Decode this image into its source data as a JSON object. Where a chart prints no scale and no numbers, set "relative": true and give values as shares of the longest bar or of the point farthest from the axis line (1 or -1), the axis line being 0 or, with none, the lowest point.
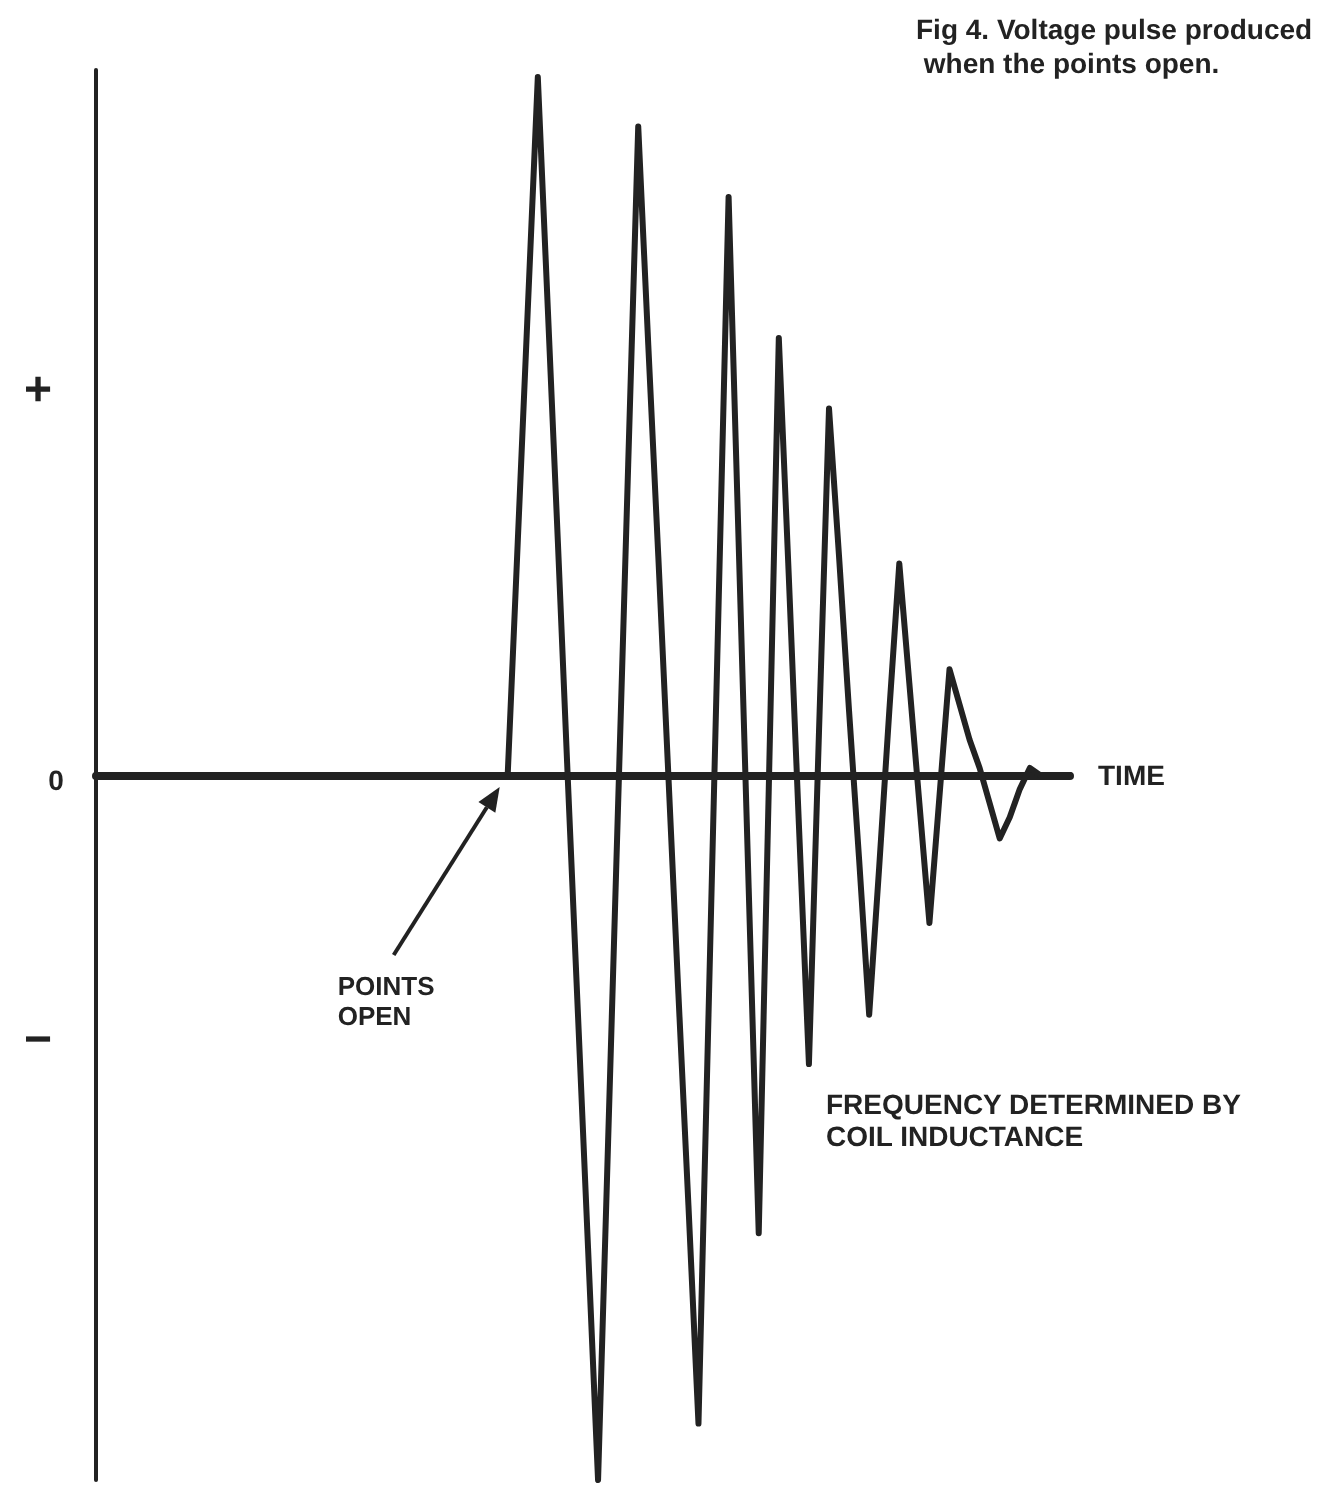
{
  "chart_data": {
    "type": "line",
    "title": "Fig 4. Voltage pulse produced when the points open.",
    "xlabel": "TIME",
    "relative": true,
    "marker": "none",
    "line_style": "solid",
    "annotations": [
      "+",
      "0",
      "−",
      "POINTS OPEN",
      "FREQUENCY DETERMINED BY COIL INDUCTANCE"
    ],
    "categories": [
      null,
      null,
      null,
      null,
      null,
      null,
      null,
      null,
      null,
      null,
      null,
      null,
      null,
      null,
      null,
      null,
      null,
      null,
      null,
      null,
      null,
      null,
      null,
      null,
      null,
      null,
      null,
      null,
      null,
      null,
      null,
      null,
      null,
      null,
      null,
      null,
      null,
      null,
      null,
      null,
      null,
      null,
      null,
      null,
      null,
      null,
      null,
      null,
      null,
      null,
      null,
      null,
      null,
      null,
      null,
      null,
      null,
      null,
      null,
      null,
      null,
      null,
      null,
      null,
      null,
      null,
      null,
      null,
      null,
      null,
      null,
      null,
      null,
      null,
      null,
      null,
      null,
      null,
      null,
      null,
      null,
      null,
      null,
      null,
      null,
      null,
      null,
      null,
      null,
      null,
      null,
      null,
      null,
      null,
      null,
      null,
      null,
      null
    ],
    "series": [
      {
        "color": "#222222",
        "values": [
          0,
          0,
          0,
          0,
          0,
          0,
          0,
          0,
          0,
          0,
          0,
          0,
          0,
          0,
          0,
          0,
          0,
          0,
          0,
          0,
          0,
          0,
          0,
          0,
          0,
          0,
          0,
          0,
          0,
          0,
          0,
          0,
          0,
          0,
          0,
          0,
          0,
          0,
          0,
          0,
          0,
          0,
          0.33,
          0.66,
          0.99,
          0.66,
          0.33,
          -0.01,
          -0.34,
          -0.67,
          -1,
          -0.52,
          -0.04,
          0.44,
          0.92,
          0.61,
          0.31,
          0,
          -0.31,
          -0.61,
          -0.92,
          -0.34,
          0.24,
          0.82,
          0.33,
          -0.16,
          -0.65,
          -0.02,
          0.62,
          0.28,
          -0.07,
          -0.41,
          0.06,
          0.52,
          0.31,
          0.09,
          -0.12,
          -0.34,
          -0.13,
          0.09,
          0.3,
          0.13,
          -0.04,
          -0.21,
          -0.03,
          0.15,
          0.1,
          0.05,
          0.01,
          -0.04,
          -0.09,
          -0.06,
          -0.02,
          0.01,
          0,
          0,
          0,
          0
        ]
      }
    ]
  }
}
